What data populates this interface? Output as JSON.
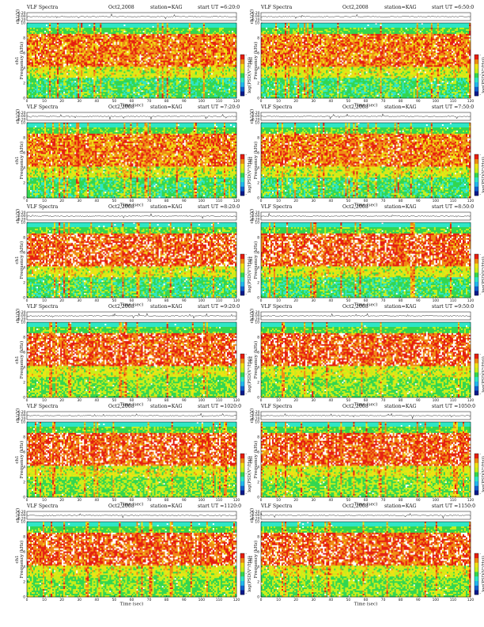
{
  "colors": {
    "colormap": [
      "#0a1a8c",
      "#1060d0",
      "#22b8ee",
      "#2ee6c6",
      "#32d650",
      "#c8ee1a",
      "#f0e214",
      "#f08a14",
      "#e61e10",
      "#ffffff"
    ],
    "trace": "#222222",
    "frame": "#000000"
  },
  "shared": {
    "title": "VLF Spectra",
    "station": "station=KAG",
    "ch_label": "ch1(V)",
    "ch1_label": "ch1",
    "ylabel": "Frequency (kHz)",
    "xlabel": "Time (sec)",
    "colorbar_label": "log(PSD(V²/Hz))",
    "trace_ticks": [
      "0.20",
      "0.00",
      "-0.20"
    ],
    "freq_ticks": [
      "10",
      "8",
      "6",
      "4",
      "2",
      "0"
    ],
    "time_ticks": [
      "0",
      "10",
      "20",
      "30",
      "40",
      "50",
      "60",
      "70",
      "80",
      "90",
      "100",
      "110",
      "120"
    ],
    "colorbar_ticks": [
      "-",
      "-",
      "-"
    ]
  },
  "panels": [
    {
      "id": "p1",
      "date": "Oct2,2008",
      "start": "start  UT =6:20:0"
    },
    {
      "id": "p2",
      "date": "Oct2,2008",
      "start": "start  UT =6:50:0"
    },
    {
      "id": "p3",
      "date": "Oct2,2008",
      "start": "start  UT =7:20:0"
    },
    {
      "id": "p4",
      "date": "Oct2,2008",
      "start": "start  UT =7:50:0"
    },
    {
      "id": "p5",
      "date": "Oct2,2008",
      "start": "start  UT =8:20:0"
    },
    {
      "id": "p6",
      "date": "Oct2,2008",
      "start": "start  UT =8:50:0"
    },
    {
      "id": "p7",
      "date": "Oct2,2008",
      "start": "start  UT =9:20:0"
    },
    {
      "id": "p8",
      "date": "Oct2,2008",
      "start": "start  UT =9:50:0"
    },
    {
      "id": "p9",
      "date": "Oct2,2008",
      "start": "start  UT =1020:0"
    },
    {
      "id": "p10",
      "date": "Oct2,2008",
      "start": "start  UT =1050:0"
    },
    {
      "id": "p11",
      "date": "Oct2,2008",
      "start": "start  UT =1120:0"
    },
    {
      "id": "p12",
      "date": "Oct2,2008",
      "start": "start  UT =1150:0"
    }
  ],
  "chart_data": [
    {
      "type": "heatmap",
      "title": "VLF Spectra",
      "subtitle": "Oct2,2008  station=KAG  start  UT =6:20:0",
      "xlabel": "Time (sec)",
      "ylabel": "Frequency (kHz)",
      "xlim": [
        0,
        120
      ],
      "ylim": [
        0,
        10
      ],
      "colorbar": "log(PSD(V²/Hz))",
      "trace": {
        "label": "ch1(V)",
        "ylim": [
          -0.2,
          0.2
        ]
      }
    },
    {
      "type": "heatmap",
      "title": "VLF Spectra",
      "subtitle": "Oct2,2008  station=KAG  start  UT =6:50:0",
      "xlabel": "Time (sec)",
      "ylabel": "Frequency (kHz)",
      "xlim": [
        0,
        120
      ],
      "ylim": [
        0,
        10
      ],
      "colorbar": "log(PSD(V²/Hz))",
      "trace": {
        "label": "ch1(V)",
        "ylim": [
          -0.2,
          0.2
        ]
      }
    },
    {
      "type": "heatmap",
      "title": "VLF Spectra",
      "subtitle": "Oct2,2008  station=KAG  start  UT =7:20:0",
      "xlabel": "Time (sec)",
      "ylabel": "Frequency (kHz)",
      "xlim": [
        0,
        120
      ],
      "ylim": [
        0,
        10
      ],
      "colorbar": "log(PSD(V²/Hz))",
      "trace": {
        "label": "ch1(V)",
        "ylim": [
          -0.2,
          0.2
        ]
      }
    },
    {
      "type": "heatmap",
      "title": "VLF Spectra",
      "subtitle": "Oct2,2008  station=KAG  start  UT =7:50:0",
      "xlabel": "Time (sec)",
      "ylabel": "Frequency (kHz)",
      "xlim": [
        0,
        120
      ],
      "ylim": [
        0,
        10
      ],
      "colorbar": "log(PSD(V²/Hz))",
      "trace": {
        "label": "ch1(V)",
        "ylim": [
          -0.2,
          0.2
        ]
      }
    },
    {
      "type": "heatmap",
      "title": "VLF Spectra",
      "subtitle": "Oct2,2008  station=KAG  start  UT =8:20:0",
      "xlabel": "Time (sec)",
      "ylabel": "Frequency (kHz)",
      "xlim": [
        0,
        120
      ],
      "ylim": [
        0,
        10
      ],
      "colorbar": "log(PSD(V²/Hz))",
      "trace": {
        "label": "ch1(V)",
        "ylim": [
          -0.2,
          0.2
        ]
      }
    },
    {
      "type": "heatmap",
      "title": "VLF Spectra",
      "subtitle": "Oct2,2008  station=KAG  start  UT =8:50:0",
      "xlabel": "Time (sec)",
      "ylabel": "Frequency (kHz)",
      "xlim": [
        0,
        120
      ],
      "ylim": [
        0,
        10
      ],
      "colorbar": "log(PSD(V²/Hz))",
      "trace": {
        "label": "ch1(V)",
        "ylim": [
          -0.2,
          0.2
        ]
      }
    },
    {
      "type": "heatmap",
      "title": "VLF Spectra",
      "subtitle": "Oct2,2008  station=KAG  start  UT =9:20:0",
      "xlabel": "Time (sec)",
      "ylabel": "Frequency (kHz)",
      "xlim": [
        0,
        120
      ],
      "ylim": [
        0,
        10
      ],
      "colorbar": "log(PSD(V²/Hz))",
      "trace": {
        "label": "ch1(V)",
        "ylim": [
          -0.2,
          0.2
        ]
      }
    },
    {
      "type": "heatmap",
      "title": "VLF Spectra",
      "subtitle": "Oct2,2008  station=KAG  start  UT =9:50:0",
      "xlabel": "Time (sec)",
      "ylabel": "Frequency (kHz)",
      "xlim": [
        0,
        120
      ],
      "ylim": [
        0,
        10
      ],
      "colorbar": "log(PSD(V²/Hz))",
      "trace": {
        "label": "ch1(V)",
        "ylim": [
          -0.2,
          0.2
        ]
      }
    },
    {
      "type": "heatmap",
      "title": "VLF Spectra",
      "subtitle": "Oct2,2008  station=KAG  start  UT =1020:0",
      "xlabel": "Time (sec)",
      "ylabel": "Frequency (kHz)",
      "xlim": [
        0,
        120
      ],
      "ylim": [
        0,
        10
      ],
      "colorbar": "log(PSD(V²/Hz))",
      "trace": {
        "label": "ch1(V)",
        "ylim": [
          -0.2,
          0.2
        ]
      }
    },
    {
      "type": "heatmap",
      "title": "VLF Spectra",
      "subtitle": "Oct2,2008  station=KAG  start  UT =1050:0",
      "xlabel": "Time (sec)",
      "ylabel": "Frequency (kHz)",
      "xlim": [
        0,
        120
      ],
      "ylim": [
        0,
        10
      ],
      "colorbar": "log(PSD(V²/Hz))",
      "trace": {
        "label": "ch1(V)",
        "ylim": [
          -0.2,
          0.2
        ]
      }
    },
    {
      "type": "heatmap",
      "title": "VLF Spectra",
      "subtitle": "Oct2,2008  station=KAG  start  UT =1120:0",
      "xlabel": "Time (sec)",
      "ylabel": "Frequency (kHz)",
      "xlim": [
        0,
        120
      ],
      "ylim": [
        0,
        10
      ],
      "colorbar": "log(PSD(V²/Hz))",
      "trace": {
        "label": "ch1(V)",
        "ylim": [
          -0.2,
          0.2
        ]
      }
    },
    {
      "type": "heatmap",
      "title": "VLF Spectra",
      "subtitle": "Oct2,2008  station=KAG  start  UT =1150:0",
      "xlabel": "Time (sec)",
      "ylabel": "Frequency (kHz)",
      "xlim": [
        0,
        120
      ],
      "ylim": [
        0,
        10
      ],
      "colorbar": "log(PSD(V²/Hz))",
      "trace": {
        "label": "ch1(V)",
        "ylim": [
          -0.2,
          0.2
        ]
      }
    }
  ]
}
